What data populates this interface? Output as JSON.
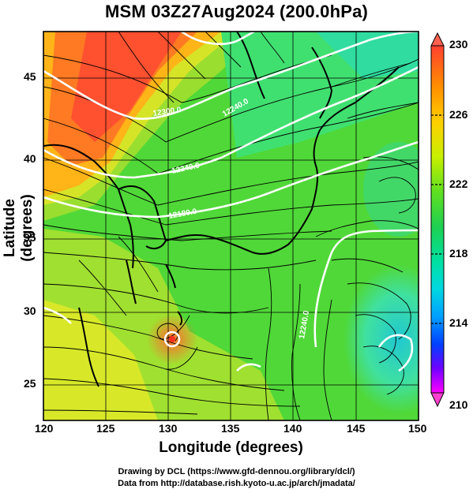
{
  "title": "MSM 03Z27Aug2024 (200.0hPa)",
  "xlabel": "Longitude (degrees)",
  "ylabel": "Latitude  (degrees)",
  "credit_line1": "Drawing by DCL (https://www.gfd-dennou.org/library/dcl/)",
  "credit_line2": "Data from http://database.rish.kyoto-u.ac.jp/arch/jmadata/",
  "map": {
    "lon_range": [
      120,
      150
    ],
    "lat_range": [
      22.4,
      47.6
    ],
    "lon_ticks": [
      "120",
      "125",
      "130",
      "135",
      "140",
      "145",
      "150"
    ],
    "lat_ticks": [
      "25",
      "30",
      "35",
      "40",
      "45"
    ],
    "lon_values": [
      120,
      125,
      130,
      135,
      140,
      145,
      150
    ],
    "lat_values": [
      25,
      30,
      35,
      40,
      45
    ],
    "contour_labels": [
      "12300.0",
      "12240.0",
      "12240.0",
      "12180.0",
      "12240.0"
    ],
    "field": "temperature",
    "overlay": "streamlines"
  },
  "colorbar": {
    "tick_labels": [
      "230",
      "226",
      "222",
      "218",
      "214",
      "210"
    ],
    "values": [
      230,
      226,
      222,
      218,
      214,
      210
    ],
    "min": 210,
    "max": 230,
    "colors": [
      "#ff00ff",
      "#c000ff",
      "#6000ff",
      "#0040ff",
      "#00a0ff",
      "#00e0e0",
      "#00e080",
      "#20d020",
      "#90e020",
      "#e0f000",
      "#ffd000",
      "#ff9000",
      "#ff4030"
    ]
  }
}
